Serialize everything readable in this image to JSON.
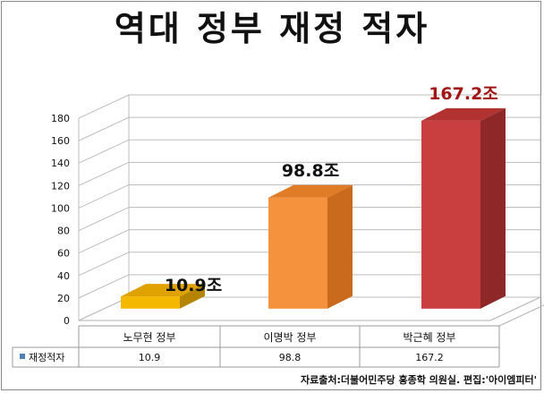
{
  "title": "역대 정부 재정 적자",
  "source": "자료출처:더불어민주당 홍종학 의원실. 편집:'아이엠피터'",
  "chart_data": {
    "type": "bar",
    "categories": [
      "노무현 정부",
      "이명박 정부",
      "박근혜 정부"
    ],
    "series": [
      {
        "name": "재정적자",
        "values": [
          10.9,
          98.8,
          167.2
        ]
      }
    ],
    "data_labels": [
      "10.9조",
      "98.8조",
      "167.2조"
    ],
    "table_values": [
      "10.9",
      "98.8",
      "167.2"
    ],
    "yticks": [
      "0",
      "20",
      "40",
      "60",
      "80",
      "100",
      "120",
      "140",
      "160",
      "180"
    ],
    "ylim": [
      0,
      180
    ],
    "grid": true,
    "legend": "data-table",
    "three_d": true,
    "colors": {
      "bar_front": [
        "#F5B800",
        "#F5923E",
        "#C93E3E"
      ],
      "bar_top": [
        "#E0A200",
        "#E07C26",
        "#B23232"
      ],
      "bar_side": [
        "#B58400",
        "#C96A1C",
        "#8E2727"
      ],
      "legend_marker": "#4F81BD",
      "label_default": "#111111",
      "label_emphasis": "#A31515"
    }
  }
}
